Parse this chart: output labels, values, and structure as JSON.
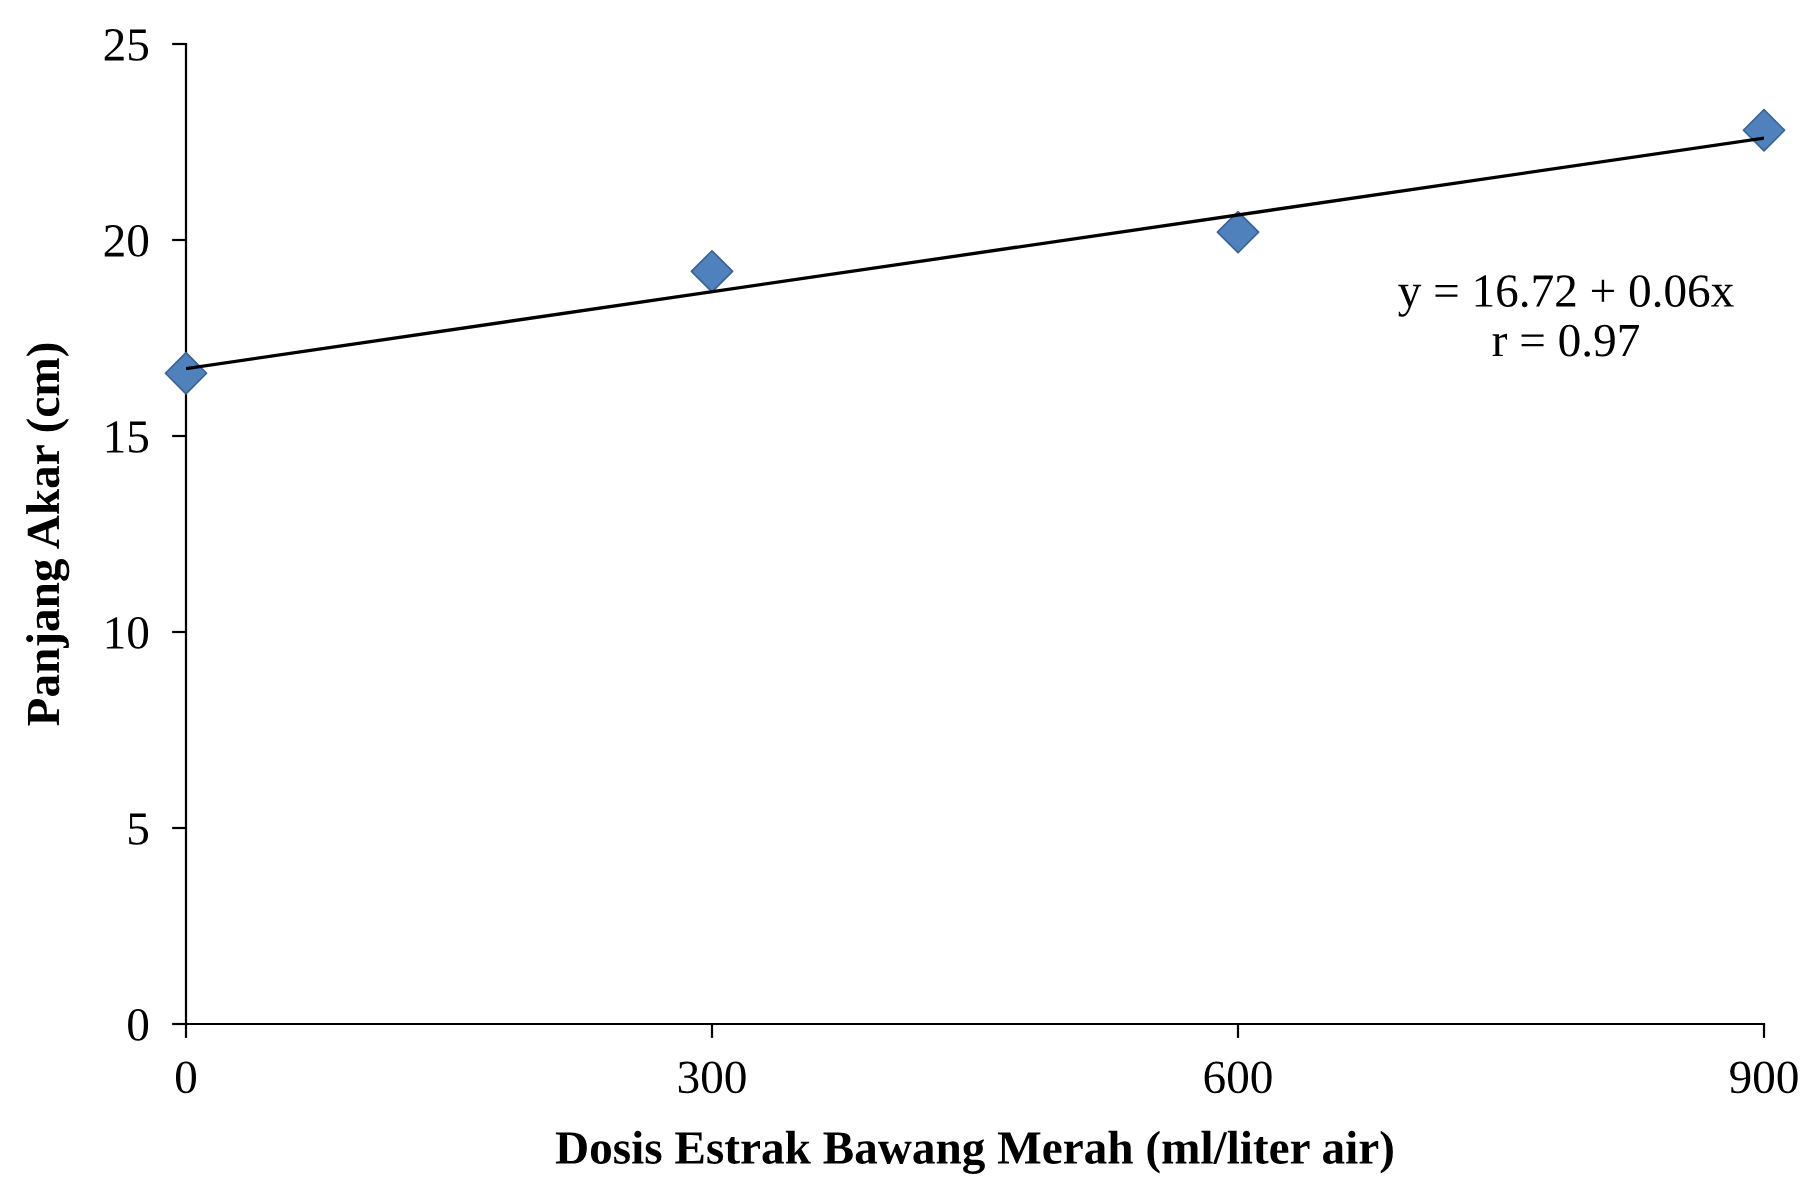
{
  "chart_data": {
    "type": "scatter",
    "xlabel": "Dosis Estrak Bawang Merah (ml/liter air)",
    "ylabel": "Panjang Akar (cm)",
    "xlim": [
      0,
      900
    ],
    "xticks": [
      0,
      300,
      600,
      900
    ],
    "ylim": [
      0,
      25
    ],
    "yticks": [
      0,
      5,
      10,
      15,
      20,
      25
    ],
    "grid": false,
    "legend": false,
    "marker": "diamond",
    "series": [
      {
        "color": "#4f81bd",
        "x": [
          0,
          300,
          600,
          900
        ],
        "values": [
          16.6,
          19.2,
          20.2,
          22.8
        ]
      },
      {
        "type": "line",
        "color": "#000000",
        "x": [
          0,
          900
        ],
        "values": [
          16.72,
          22.6
        ],
        "marker": "none",
        "line_style": "solid"
      }
    ],
    "annotations": [
      "y = 16.72 + 0.06x\nr = 0.97"
    ]
  }
}
